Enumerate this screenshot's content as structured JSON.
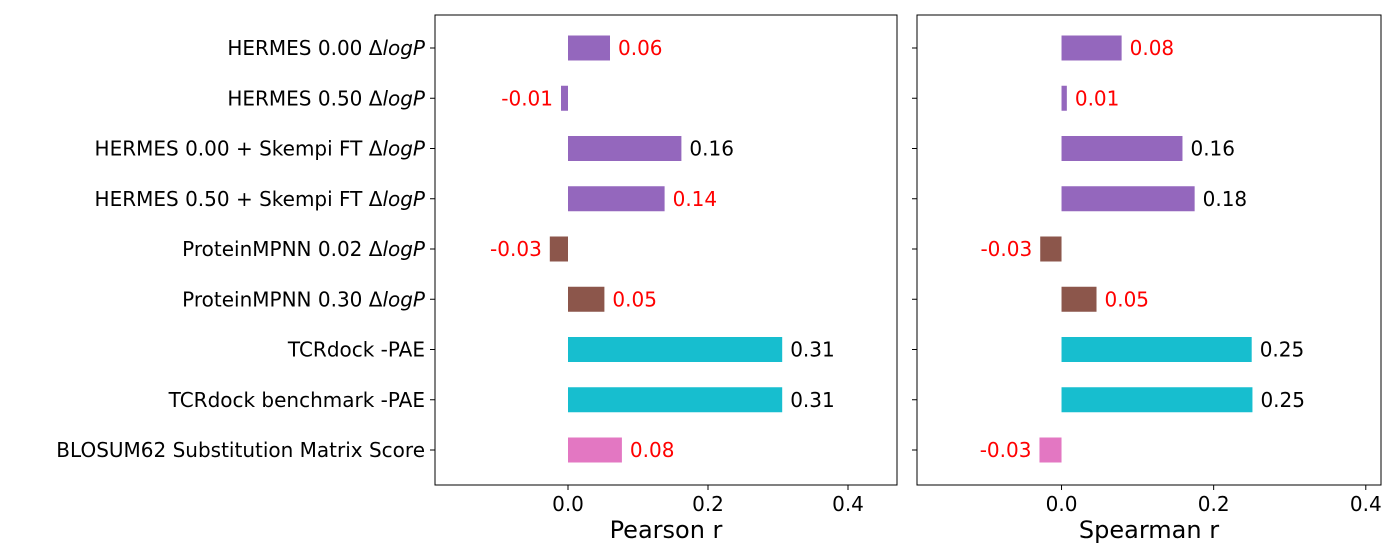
{
  "categories": [
    "HERMES 0.00 ΔlogP",
    "HERMES 0.50 ΔlogP",
    "HERMES 0.00 + Skempi FT ΔlogP",
    "HERMES 0.50 + Skempi FT ΔlogP",
    "ProteinMPNN 0.02 ΔlogP",
    "ProteinMPNN 0.30 ΔlogP",
    "TCRdock -PAE",
    "TCRdock benchmark -PAE",
    "BLOSUM62 Substitution Matrix Score"
  ],
  "label_parts": [
    {
      "plain": "HERMES 0.00 Δ",
      "italic": "logP"
    },
    {
      "plain": "HERMES 0.50 Δ",
      "italic": "logP"
    },
    {
      "plain": "HERMES 0.00 + Skempi FT Δ",
      "italic": "logP"
    },
    {
      "plain": "HERMES 0.50 + Skempi FT Δ",
      "italic": "logP"
    },
    {
      "plain": "ProteinMPNN 0.02 Δ",
      "italic": "logP"
    },
    {
      "plain": "ProteinMPNN 0.30 Δ",
      "italic": "logP"
    },
    {
      "plain": "TCRdock -PAE",
      "italic": ""
    },
    {
      "plain": "TCRdock benchmark -PAE",
      "italic": ""
    },
    {
      "plain": "BLOSUM62 Substitution Matrix Score",
      "italic": ""
    }
  ],
  "chart_data": [
    {
      "type": "bar",
      "orientation": "horizontal",
      "xlabel": "Pearson r",
      "xlim": [
        -0.19,
        0.47
      ],
      "xticks": [
        0.0,
        0.2,
        0.4
      ],
      "xtick_labels": [
        "0.0",
        "0.2",
        "0.4"
      ],
      "grid": false,
      "values": [
        0.06,
        -0.01,
        0.162,
        0.138,
        -0.026,
        0.052,
        0.306,
        0.306,
        0.077
      ],
      "value_labels": [
        "0.06",
        "-0.01",
        "0.16",
        "0.14",
        "-0.03",
        "0.05",
        "0.31",
        "0.31",
        "0.08"
      ],
      "bar_colors": [
        "#9467bd",
        "#9467bd",
        "#9467bd",
        "#9467bd",
        "#8c564b",
        "#8c564b",
        "#17becf",
        "#17becf",
        "#e377c2"
      ],
      "label_colors": [
        "#ff0000",
        "#ff0000",
        "#000000",
        "#ff0000",
        "#ff0000",
        "#ff0000",
        "#000000",
        "#000000",
        "#ff0000"
      ]
    },
    {
      "type": "bar",
      "orientation": "horizontal",
      "xlabel": "Spearman r",
      "xlim": [
        -0.19,
        0.42
      ],
      "xticks": [
        0.0,
        0.2,
        0.4
      ],
      "xtick_labels": [
        "0.0",
        "0.2",
        "0.4"
      ],
      "grid": false,
      "values": [
        0.079,
        0.007,
        0.159,
        0.175,
        -0.028,
        0.046,
        0.25,
        0.251,
        -0.029
      ],
      "value_labels": [
        "0.08",
        "0.01",
        "0.16",
        "0.18",
        "-0.03",
        "0.05",
        "0.25",
        "0.25",
        "-0.03"
      ],
      "bar_colors": [
        "#9467bd",
        "#9467bd",
        "#9467bd",
        "#9467bd",
        "#8c564b",
        "#8c564b",
        "#17becf",
        "#17becf",
        "#e377c2"
      ],
      "label_colors": [
        "#ff0000",
        "#ff0000",
        "#000000",
        "#000000",
        "#ff0000",
        "#ff0000",
        "#000000",
        "#000000",
        "#ff0000"
      ]
    }
  ]
}
